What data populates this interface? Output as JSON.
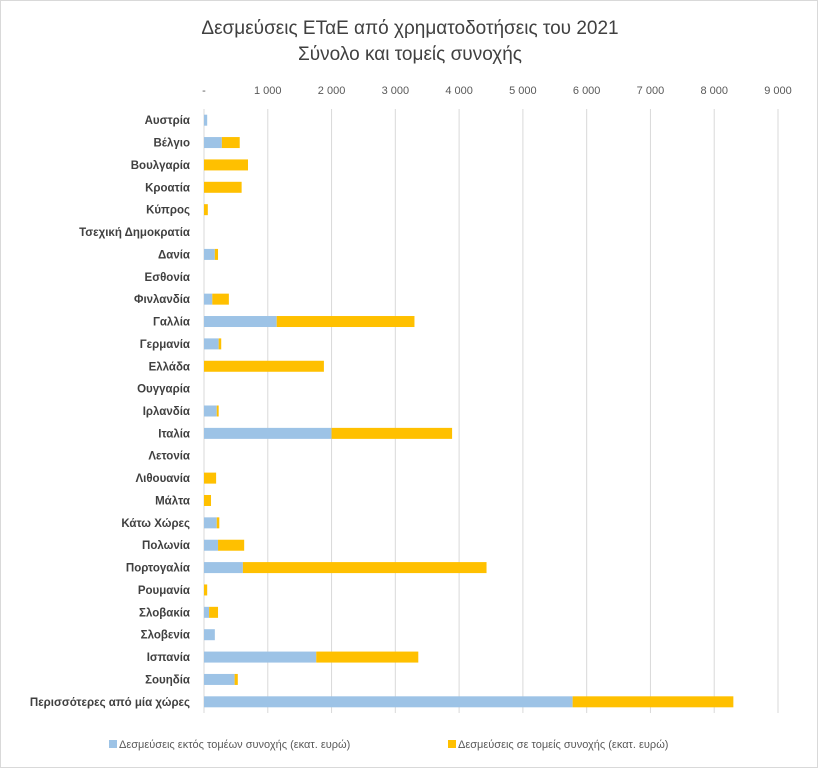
{
  "chart_data": {
    "type": "bar",
    "orientation": "horizontal",
    "stacked": true,
    "title": [
      "Δεσμεύσεις ΕΤαΕ από χρηματοδοτήσεις του 2021",
      "Σύνολο και τομείς συνοχής"
    ],
    "xlim": [
      0,
      9000
    ],
    "xticks": [
      0,
      1000,
      2000,
      3000,
      4000,
      5000,
      6000,
      7000,
      8000,
      9000
    ],
    "xtick_labels": [
      "-",
      "1 000",
      "2 000",
      "3 000",
      "4 000",
      "5 000",
      "6 000",
      "7 000",
      "8 000",
      "9 000"
    ],
    "grid": true,
    "legend_position": "bottom",
    "categories": [
      "Αυστρία",
      "Βέλγιο",
      "Βουλγαρία",
      "Κροατία",
      "Κύπρος",
      "Τσεχική Δημοκρατία",
      "Δανία",
      "Εσθονία",
      "Φινλανδία",
      "Γαλλία",
      "Γερμανία",
      "Ελλάδα",
      "Ουγγαρία",
      "Ιρλανδία",
      "Ιταλία",
      "Λετονία",
      "Λιθουανία",
      "Μάλτα",
      "Κάτω Χώρες",
      "Πολωνία",
      "Πορτογαλία",
      "Ρουμανία",
      "Σλοβακία",
      "Σλοβενία",
      "Ισπανία",
      "Σουηδία",
      "Περισσότερες από μία χώρες"
    ],
    "series": [
      {
        "name": "Δεσμεύσεις εκτός τομέων συνοχής (εκατ. ευρώ)",
        "color": "#9dc3e6",
        "values": [
          50,
          280,
          0,
          0,
          0,
          0,
          170,
          0,
          130,
          1140,
          230,
          0,
          0,
          200,
          2000,
          0,
          0,
          0,
          200,
          220,
          610,
          0,
          80,
          170,
          1760,
          480,
          5780
        ]
      },
      {
        "name": "Δεσμεύσεις σε τομείς συνοχής (εκατ. ευρώ)",
        "color": "#ffc000",
        "values": [
          0,
          280,
          690,
          590,
          60,
          0,
          50,
          0,
          260,
          2160,
          40,
          1880,
          0,
          30,
          1890,
          0,
          190,
          110,
          40,
          410,
          3820,
          50,
          140,
          0,
          1600,
          50,
          2520
        ]
      }
    ]
  }
}
